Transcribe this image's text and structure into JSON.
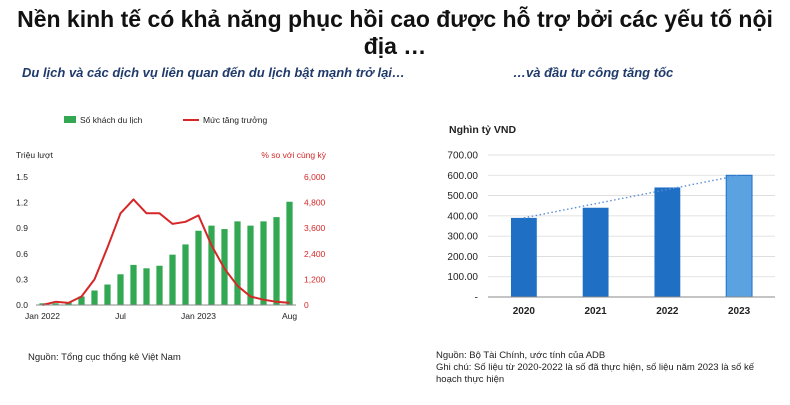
{
  "page": {
    "title": "Nền kinh tế có khả năng phục hồi cao được hỗ trợ bởi các yếu tố nội địa …",
    "left_subtitle": "Du lịch và các dịch vụ liên quan đến du lịch bật mạnh trở lại…",
    "right_subtitle": "…và đầu tư công tăng tốc",
    "left_source": "Nguồn: Tổng cục thống kê Việt Nam",
    "right_source": "Nguồn: Bộ Tài Chính, ước tính của ADB",
    "right_note": "Ghi chú: Số liệu từ 2020-2022 là số đã thực hiện, số liệu năm 2023 là số kế hoạch thực hiện"
  },
  "colors": {
    "bar_green": "#33a853",
    "line_red": "#d62728",
    "bar_blue": "#1f6fc5",
    "bar_blue_plan": "#5aa2e0",
    "trend_dotted": "#5b8fd6",
    "right_axis_text": "#d62728"
  },
  "chart_data": [
    {
      "type": "bar",
      "combo": "bar+line",
      "legend": [
        "Số khách du lịch",
        "Mức tăng trưởng"
      ],
      "legend_position": "top",
      "ylabel": "Triệu lượt",
      "y2label": "% so với cùng kỳ",
      "ylim": [
        0,
        1.5
      ],
      "y2lim": [
        0,
        6000
      ],
      "yticks": [
        "0.0",
        "0.3",
        "0.6",
        "0.9",
        "1.2",
        "1.5"
      ],
      "y2ticks": [
        "0",
        "1,200",
        "2,400",
        "3,600",
        "4,800",
        "6,000"
      ],
      "x_tick_labels": [
        {
          "index": 0,
          "label": "Jan 2022"
        },
        {
          "index": 6,
          "label": "Jul"
        },
        {
          "index": 12,
          "label": "Jan 2023"
        },
        {
          "index": 19,
          "label": "Aug"
        }
      ],
      "series": [
        {
          "name": "Số khách du lịch",
          "kind": "bar",
          "axis": "left",
          "values": [
            0.02,
            0.02,
            0.03,
            0.1,
            0.17,
            0.24,
            0.36,
            0.47,
            0.43,
            0.46,
            0.59,
            0.71,
            0.87,
            0.93,
            0.89,
            0.98,
            0.93,
            0.98,
            1.03,
            1.21
          ]
        },
        {
          "name": "Mức tăng trưởng",
          "kind": "line",
          "axis": "right",
          "values": [
            0,
            150,
            100,
            400,
            1200,
            2700,
            4300,
            4950,
            4300,
            4300,
            3800,
            3900,
            4200,
            2800,
            1700,
            900,
            400,
            250,
            150,
            100
          ]
        }
      ]
    },
    {
      "type": "bar",
      "ylabel": "Nghìn tỷ VND",
      "categories": [
        "2020",
        "2021",
        "2022",
        "2023"
      ],
      "values": [
        390,
        440,
        540,
        600
      ],
      "ylim": [
        0,
        700
      ],
      "yticks": [
        "-",
        "100.00",
        "200.00",
        "300.00",
        "400.00",
        "500.00",
        "600.00",
        "700.00"
      ],
      "trendline": "dotted",
      "grid": true
    }
  ]
}
